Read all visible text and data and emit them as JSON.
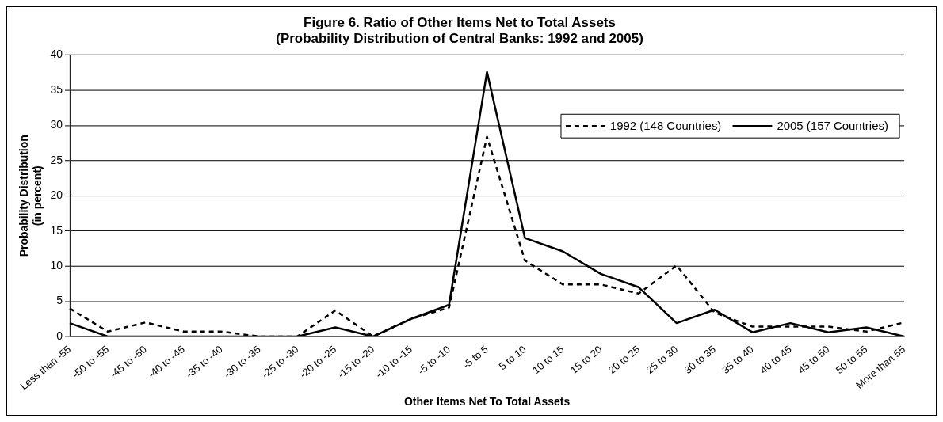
{
  "chart_data": {
    "type": "line",
    "title": "Figure 6. Ratio of Other Items Net to Total Assets",
    "subtitle": "(Probability Distribution of Central Banks: 1992 and 2005)",
    "xlabel": "Other Items Net To Total Assets",
    "ylabel": "Probability Distribution\n(in percent)",
    "categories": [
      "Less than -55",
      "-50 to -55",
      "-45 to -50",
      "-40 to -45",
      "-35 to -40",
      "-30 to -35",
      "-25 to -30",
      "-20 to -25",
      "-15 to -20",
      "-10 to -15",
      "-5 to -10",
      "-5 to 5",
      "5 to 10",
      "10 to 15",
      "15 to 20",
      "20 to 25",
      "25 to 30",
      "30 to 35",
      "35 to 40",
      "40 to 45",
      "45 to 50",
      "50 to 55",
      "More than 55"
    ],
    "series": [
      {
        "name": "1992 (148 Countries)",
        "color": "#000000",
        "line_style": "dashed",
        "values": [
          4.0,
          0.7,
          2.0,
          0.7,
          0.7,
          0,
          0,
          3.7,
          0,
          2.5,
          4.1,
          28.4,
          10.8,
          7.4,
          7.4,
          6.1,
          10.1,
          3.4,
          1.4,
          1.4,
          1.4,
          0.7,
          2.0
        ]
      },
      {
        "name": "2005 (157 Countries)",
        "color": "#000000",
        "line_style": "solid",
        "values": [
          1.9,
          0,
          0,
          0,
          0,
          0,
          0,
          1.3,
          0,
          2.5,
          4.5,
          37.6,
          14.0,
          12.1,
          8.9,
          7.0,
          1.9,
          3.8,
          0.6,
          1.9,
          0.6,
          1.3,
          0
        ]
      }
    ],
    "ylim": [
      0,
      40
    ],
    "yticks": [
      0,
      5,
      10,
      15,
      20,
      25,
      30,
      35,
      40
    ],
    "grid": "y",
    "legend": "top right",
    "marker": "none"
  }
}
